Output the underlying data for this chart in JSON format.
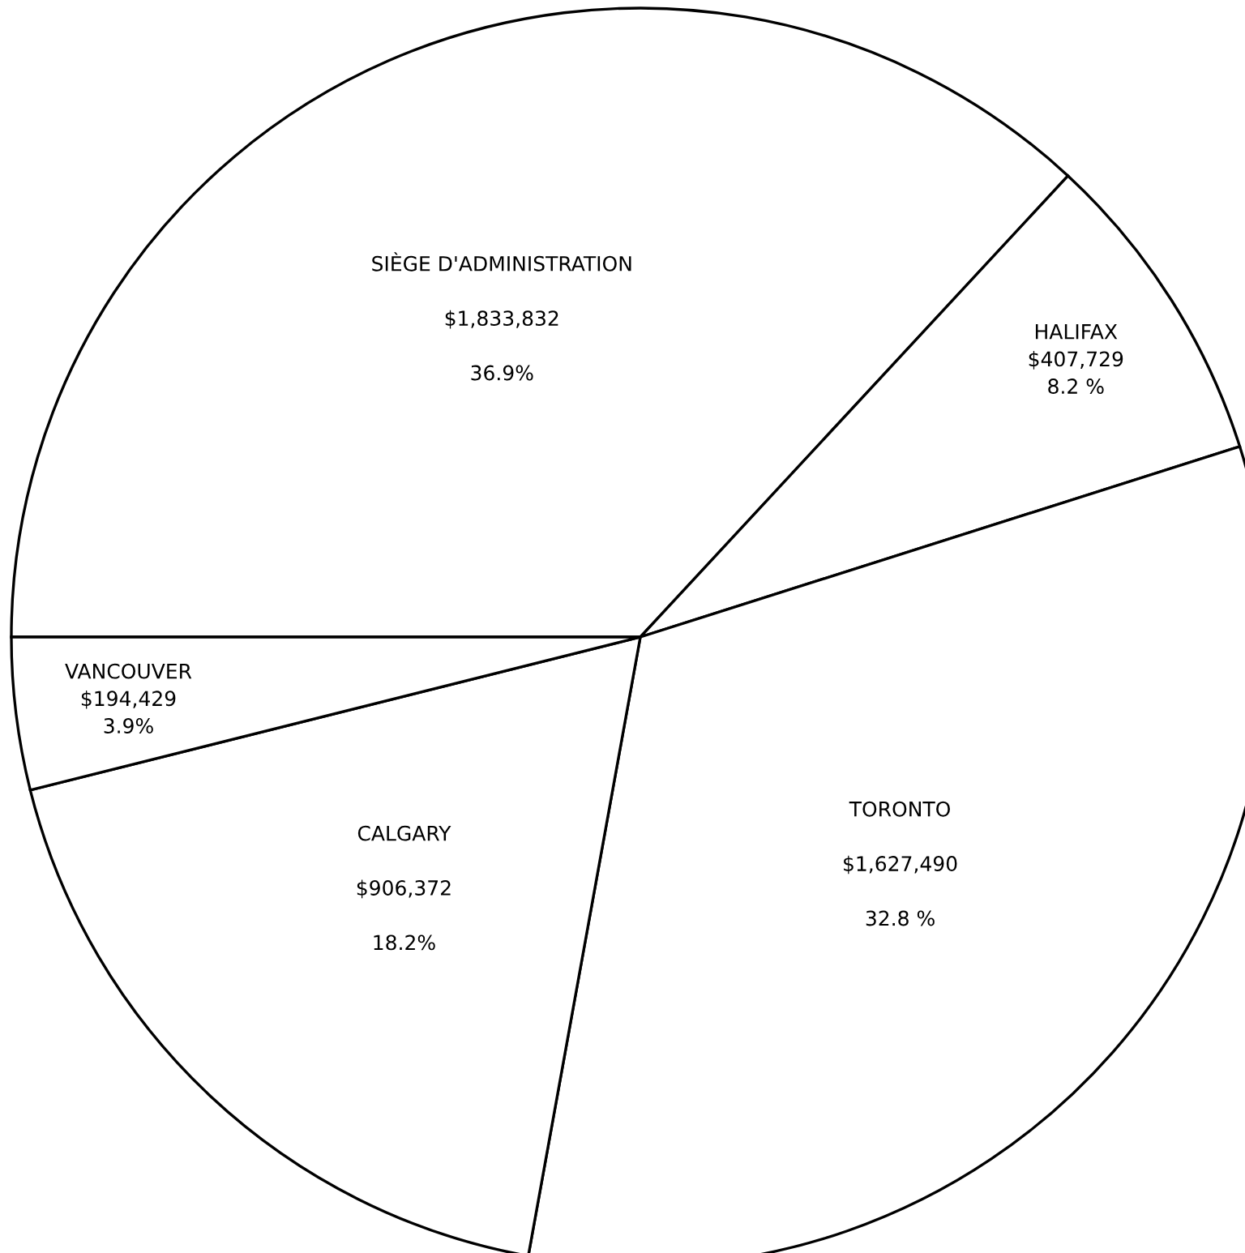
{
  "chart_data": {
    "type": "pie",
    "categories": [
      "SIÈGE D'ADMINISTRATION",
      "HALIFAX",
      "TORONTO",
      "CALGARY",
      "VANCOUVER"
    ],
    "values": [
      1833832,
      407729,
      1627490,
      906372,
      194429
    ],
    "value_labels": [
      "$1,833,832\n\n36.9%",
      "$407,729\n8.2 %",
      "$1,627,490\n\n32.8 %",
      "$906,372\n\n18.2%",
      "$194,429\n3.9%"
    ],
    "colors": [
      "#ffffff",
      "#ffffff",
      "#ffffff",
      "#ffffff",
      "#ffffff"
    ]
  }
}
